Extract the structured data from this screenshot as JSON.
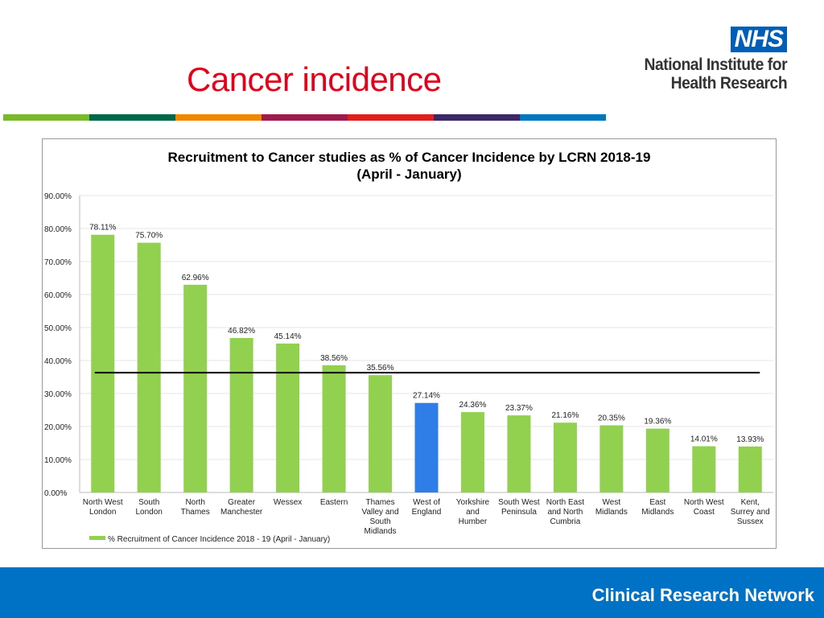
{
  "slide": {
    "title": "Cancer incidence",
    "logo": {
      "badge": "NHS",
      "line1": "National Institute for",
      "line2": "Health Research",
      "badge_color": "#005eb8"
    },
    "stripe_colors": [
      "#7ab929",
      "#006848",
      "#f18700",
      "#a11a4c",
      "#e01e1e",
      "#3b2868",
      "#0076bf"
    ],
    "footer": "Clinical Research Network"
  },
  "chart_data": {
    "type": "bar",
    "title": "Recruitment to Cancer studies as % of Cancer Incidence by LCRN 2018-19",
    "subtitle": "(April - January)",
    "categories": [
      [
        "North West",
        "London"
      ],
      [
        "South",
        "London"
      ],
      [
        "North",
        "Thames"
      ],
      [
        "Greater",
        "Manchester"
      ],
      [
        "Wessex"
      ],
      [
        "Eastern"
      ],
      [
        "Thames",
        "Valley and",
        "South",
        "Midlands"
      ],
      [
        "West of",
        "England"
      ],
      [
        "Yorkshire",
        "and",
        "Humber"
      ],
      [
        "South West",
        "Peninsula"
      ],
      [
        "North East",
        "and North",
        "Cumbria"
      ],
      [
        "West",
        "Midlands"
      ],
      [
        "East",
        "Midlands"
      ],
      [
        "North West",
        "Coast"
      ],
      [
        "Kent,",
        "Surrey and",
        "Sussex"
      ]
    ],
    "series": [
      {
        "name": "% Recruitment of Cancer Incidence 2018 - 19 (April - January)",
        "values": [
          78.11,
          75.7,
          62.96,
          46.82,
          45.14,
          38.56,
          35.56,
          27.14,
          24.36,
          23.37,
          21.16,
          20.35,
          19.36,
          14.01,
          13.93
        ],
        "labels": [
          "78.11%",
          "75.70%",
          "62.96%",
          "46.82%",
          "45.14%",
          "38.56%",
          "35.56%",
          "27.14%",
          "24.36%",
          "23.37%",
          "21.16%",
          "20.35%",
          "19.36%",
          "14.01%",
          "13.93%"
        ],
        "color": "#92d050",
        "highlight_index": 7,
        "highlight_color": "#2f7ee8"
      }
    ],
    "reference_line": {
      "value": 36.3,
      "color": "#000000"
    },
    "y_ticks": [
      "0.00%",
      "10.00%",
      "20.00%",
      "30.00%",
      "40.00%",
      "50.00%",
      "60.00%",
      "70.00%",
      "80.00%",
      "90.00%"
    ],
    "ylim": [
      0,
      90
    ],
    "xlabel": "",
    "ylabel": "",
    "grid": true,
    "legend": "bottom-left"
  }
}
